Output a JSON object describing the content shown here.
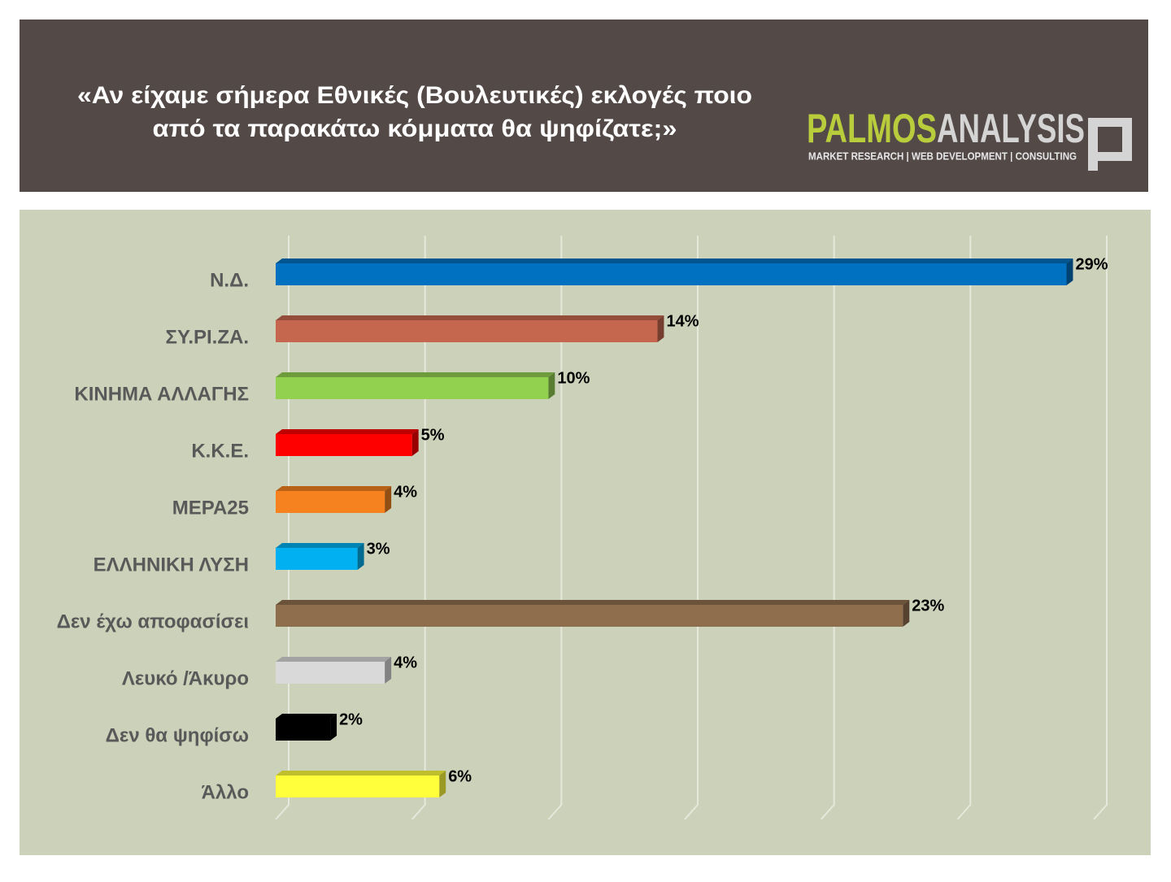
{
  "chart_data": {
    "type": "bar",
    "title": [
      "«Αν είχαμε σήμερα Εθνικές (Βουλευτικές) εκλογές ποιο",
      "από τα παρακάτω κόμματα θα ψηφίζατε;»"
    ],
    "logo": {
      "brand_left": "PALMOS",
      "brand_right": "ANALYSIS",
      "tagline": "MARKET RESEARCH | WEB DEVELOPMENT | CONSULTING"
    },
    "categories": [
      "Ν.Δ.",
      "ΣΥ.ΡΙ.ΖΑ.",
      "ΚΙΝΗΜΑ ΑΛΛΑΓΗΣ",
      "Κ.Κ.Ε.",
      "ΜΕΡΑ25",
      "ΕΛΛΗΝΙΚΗ ΛΥΣΗ",
      "Δεν έχω αποφασίσει",
      "Λευκό /Άκυρο",
      "Δεν θα ψηφίσω",
      "Άλλο"
    ],
    "values": [
      29,
      14,
      10,
      5,
      4,
      3,
      23,
      4,
      2,
      6
    ],
    "value_labels": [
      "29%",
      "14%",
      "10%",
      "5%",
      "4%",
      "3%",
      "23%",
      "4%",
      "2%",
      "6%"
    ],
    "colors": [
      "#0070c0",
      "#c5674f",
      "#92d050",
      "#ff0000",
      "#f5821f",
      "#00b0f0",
      "#8f6e4e",
      "#d9d9d9",
      "#000000",
      "#ffff3c"
    ],
    "xlim": [
      0,
      30
    ],
    "xticks": [
      0,
      5,
      10,
      15,
      20,
      25,
      30
    ],
    "grid": true
  }
}
